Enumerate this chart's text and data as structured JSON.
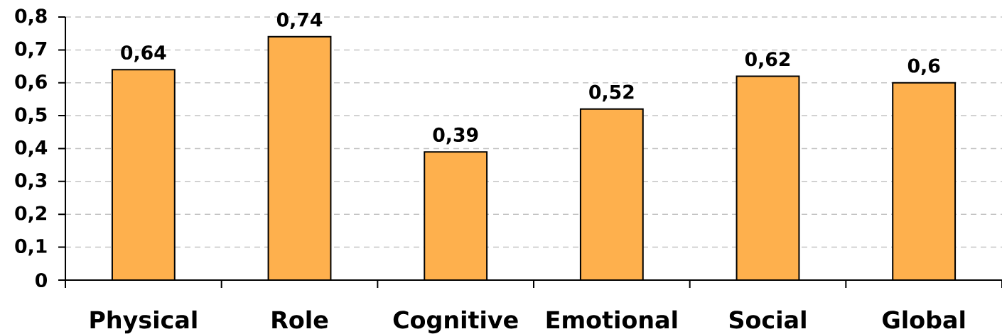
{
  "chart_data": {
    "type": "bar",
    "categories": [
      "Physical",
      "Role",
      "Cognitive",
      "Emotional",
      "Social",
      "Global"
    ],
    "values": [
      0.64,
      0.74,
      0.39,
      0.52,
      0.62,
      0.6
    ],
    "value_labels": [
      "0,64",
      "0,74",
      "0,39",
      "0,52",
      "0,62",
      "0,6"
    ],
    "color": "#feb04d",
    "ylim": [
      0,
      0.8
    ],
    "yticks": [
      0,
      {
        "value": 0.1,
        "label": "0,1"
      },
      {
        "value": 0.2,
        "label": "0,2"
      },
      {
        "value": 0.3,
        "label": "0,3"
      },
      {
        "value": 0.4,
        "label": "0,4"
      },
      {
        "value": 0.5,
        "label": "0,5"
      },
      {
        "value": 0.6,
        "label": "0,6"
      },
      {
        "value": 0.7,
        "label": "0,7"
      },
      {
        "value": 0.8,
        "label": "0,8"
      }
    ],
    "grid": "y"
  }
}
